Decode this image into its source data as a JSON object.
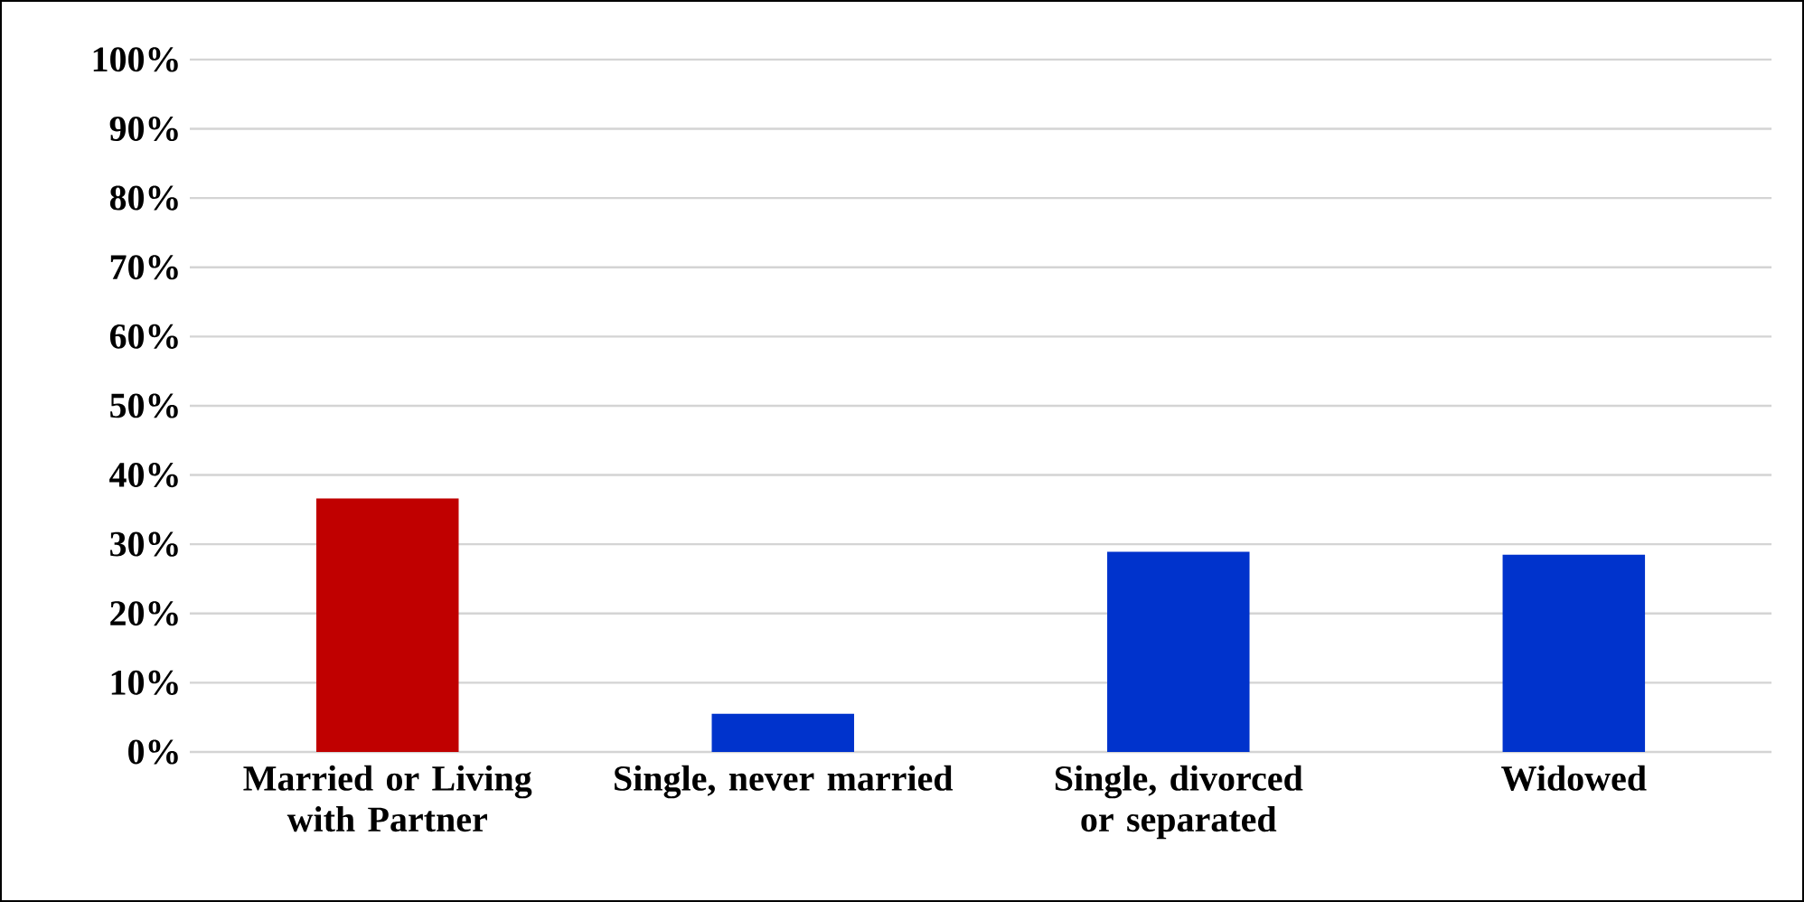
{
  "chart_data": {
    "type": "bar",
    "categories": [
      "Married or Living with Partner",
      "Single, never married",
      "Single, divorced or separated",
      "Widowed"
    ],
    "values": [
      36.6,
      5.5,
      28.9,
      28.5
    ],
    "colors": [
      "#c00000",
      "#0033cc",
      "#0033cc",
      "#0033cc"
    ],
    "ylim": [
      0,
      100
    ],
    "yticks": [
      {
        "value": 0,
        "label": "0%"
      },
      {
        "value": 10,
        "label": "10%"
      },
      {
        "value": 20,
        "label": "20%"
      },
      {
        "value": 30,
        "label": "30%"
      },
      {
        "value": 40,
        "label": "40%"
      },
      {
        "value": 50,
        "label": "50%"
      },
      {
        "value": 60,
        "label": "60%"
      },
      {
        "value": 70,
        "label": "70%"
      },
      {
        "value": 80,
        "label": "80%"
      },
      {
        "value": 90,
        "label": "90%"
      },
      {
        "value": 100,
        "label": "100%"
      }
    ],
    "grid": "y"
  }
}
